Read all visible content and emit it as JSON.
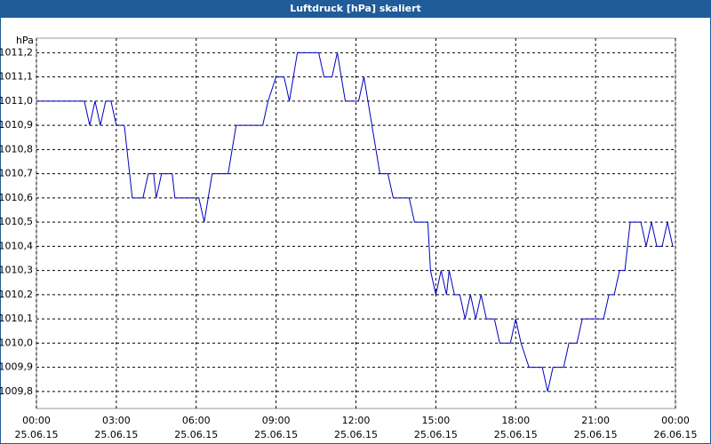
{
  "chart_data": {
    "type": "line",
    "title": "Luftdruck [hPa] skaliert",
    "y_unit": "hPa",
    "x": [
      0,
      1.8,
      2.0,
      2.2,
      2.4,
      2.6,
      2.8,
      3.0,
      3.3,
      3.6,
      4.0,
      4.2,
      4.4,
      4.5,
      4.7,
      5.1,
      5.2,
      6.1,
      6.3,
      6.6,
      7.2,
      7.5,
      8.5,
      8.7,
      9.0,
      9.3,
      9.5,
      9.8,
      10.6,
      10.8,
      11.1,
      11.3,
      11.6,
      12.1,
      12.3,
      12.9,
      13.2,
      13.4,
      14.0,
      14.2,
      14.7,
      14.8,
      15.0,
      15.2,
      15.4,
      15.5,
      15.7,
      15.9,
      16.1,
      16.3,
      16.5,
      16.7,
      16.9,
      17.2,
      17.4,
      17.8,
      18.0,
      18.2,
      18.5,
      19.0,
      19.2,
      19.4,
      19.8,
      20.0,
      20.3,
      20.5,
      21.3,
      21.5,
      21.7,
      21.9,
      22.1,
      22.3,
      22.7,
      22.9,
      23.1,
      23.3,
      23.5,
      23.7,
      23.9
    ],
    "series": [
      {
        "color": "#0000c0",
        "values": [
          1011.0,
          1011.0,
          1010.9,
          1011.0,
          1010.9,
          1011.0,
          1011.0,
          1010.9,
          1010.9,
          1010.6,
          1010.6,
          1010.7,
          1010.7,
          1010.6,
          1010.7,
          1010.7,
          1010.6,
          1010.6,
          1010.5,
          1010.7,
          1010.7,
          1010.9,
          1010.9,
          1011.0,
          1011.1,
          1011.1,
          1011.0,
          1011.2,
          1011.2,
          1011.1,
          1011.1,
          1011.2,
          1011.0,
          1011.0,
          1011.1,
          1010.7,
          1010.7,
          1010.6,
          1010.6,
          1010.5,
          1010.5,
          1010.3,
          1010.2,
          1010.3,
          1010.2,
          1010.3,
          1010.2,
          1010.2,
          1010.1,
          1010.2,
          1010.1,
          1010.2,
          1010.1,
          1010.1,
          1010.0,
          1010.0,
          1010.1,
          1010.0,
          1009.9,
          1009.9,
          1009.8,
          1009.9,
          1009.9,
          1010.0,
          1010.0,
          1010.1,
          1010.1,
          1010.2,
          1010.2,
          1010.3,
          1010.3,
          1010.5,
          1010.5,
          1010.4,
          1010.5,
          1010.4,
          1010.4,
          1010.5,
          1010.4
        ]
      }
    ],
    "xlim": [
      0,
      24
    ],
    "xticks": [
      {
        "value": 0,
        "label": "00:00"
      },
      {
        "value": 3,
        "label": "03:00"
      },
      {
        "value": 6,
        "label": "06:00"
      },
      {
        "value": 9,
        "label": "09:00"
      },
      {
        "value": 12,
        "label": "12:00"
      },
      {
        "value": 15,
        "label": "15:00"
      },
      {
        "value": 18,
        "label": "18:00"
      },
      {
        "value": 21,
        "label": "21:00"
      },
      {
        "value": 24,
        "label": "00:00"
      }
    ],
    "xtick_dates": [
      "25.06.15",
      "25.06.15",
      "25.06.15",
      "25.06.15",
      "25.06.15",
      "25.06.15",
      "25.06.15",
      "25.06.15",
      "26.06.15"
    ],
    "ylim": [
      1009.73,
      1011.26
    ],
    "yticks": [
      {
        "value": 1009.8,
        "label": "1009,8"
      },
      {
        "value": 1009.9,
        "label": "1009,9"
      },
      {
        "value": 1010.0,
        "label": "1010,0"
      },
      {
        "value": 1010.1,
        "label": "1010,1"
      },
      {
        "value": 1010.2,
        "label": "1010,2"
      },
      {
        "value": 1010.3,
        "label": "1010,3"
      },
      {
        "value": 1010.4,
        "label": "1010,4"
      },
      {
        "value": 1010.5,
        "label": "1010,5"
      },
      {
        "value": 1010.6,
        "label": "1010,6"
      },
      {
        "value": 1010.7,
        "label": "1010,7"
      },
      {
        "value": 1010.8,
        "label": "1010,8"
      },
      {
        "value": 1010.9,
        "label": "1010,9"
      },
      {
        "value": 1011.0,
        "label": "1011,0"
      },
      {
        "value": 1011.1,
        "label": "1011,1"
      },
      {
        "value": 1011.2,
        "label": "1011,2"
      }
    ],
    "grid": true
  }
}
